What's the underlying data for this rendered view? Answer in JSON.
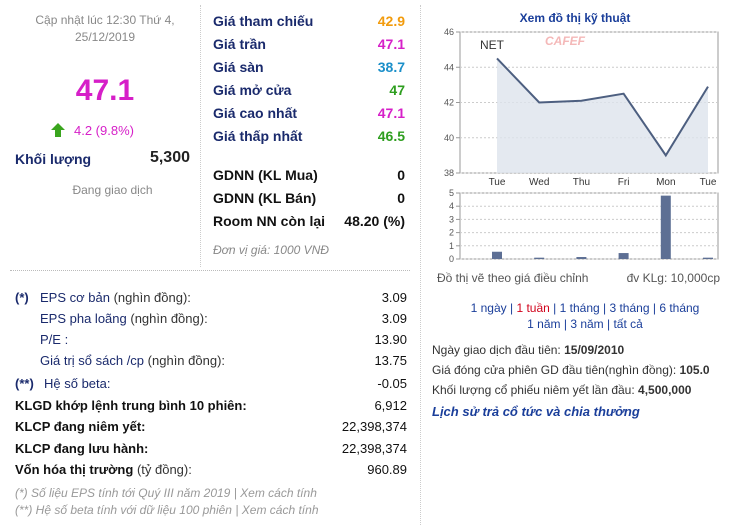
{
  "update": {
    "line1": "Cập nhật lúc 12:30 Thứ 4,",
    "line2": "25/12/2019"
  },
  "price": "47.1",
  "change": "4.2 (9.8%)",
  "volume": {
    "label": "Khối lượng",
    "value": "5,300"
  },
  "status": "Đang giao dịch",
  "quotes": [
    {
      "label": "Giá tham chiếu",
      "value": "42.9",
      "color": "#f29b0c"
    },
    {
      "label": "Giá trần",
      "value": "47.1",
      "color": "#d61fc8"
    },
    {
      "label": "Giá sàn",
      "value": "38.7",
      "color": "#1b8fc9"
    },
    {
      "label": "Giá mở cửa",
      "value": "47",
      "color": "#2e9e1f"
    },
    {
      "label": "Giá cao nhất",
      "value": "47.1",
      "color": "#d61fc8"
    },
    {
      "label": "Giá thấp nhất",
      "value": "46.5",
      "color": "#2e9e1f"
    }
  ],
  "foreign": [
    {
      "label": "GDNN (KL Mua)",
      "value": "0"
    },
    {
      "label": "GDNN (KL Bán)",
      "value": "0"
    },
    {
      "label": "Room NN còn lại",
      "value": "48.20 (%)"
    }
  ],
  "unit_note": "Đơn vị giá: 1000 VNĐ",
  "fundamentals": [
    {
      "marker": "(*)",
      "label": "EPS cơ bản",
      "unit": "(nghìn đồng):",
      "value": "3.09"
    },
    {
      "label": "EPS pha loãng",
      "unit": "(nghìn đồng):",
      "value": "3.09"
    },
    {
      "label": "P/E :",
      "value": "13.90"
    },
    {
      "label": "Giá trị sổ sách /cp",
      "unit": "(nghìn đồng):",
      "value": "13.75"
    },
    {
      "marker": "(**)",
      "label": "Hệ số beta:",
      "value": "-0.05"
    },
    {
      "label": "KLGD khớp lệnh trung bình 10 phiên:",
      "value": "6,912"
    },
    {
      "label": "KLCP đang niêm yết:",
      "value": "22,398,374"
    },
    {
      "label": "KLCP đang lưu hành:",
      "value": "22,398,374"
    },
    {
      "label": "Vốn hóa thị trường",
      "unit": "(tỷ đồng):",
      "value": "960.89"
    }
  ],
  "footnotes": [
    {
      "text": "(*) Số liệu EPS tính tới Quý III năm 2019 |",
      "link": "Xem cách tính"
    },
    {
      "text": "(**) Hệ số beta tính với dữ liệu 100 phiên |",
      "link": "Xem cách tính"
    }
  ],
  "chart_data": [
    {
      "type": "line",
      "title": "Xem đồ thị kỹ thuật",
      "watermark": "CAFEF",
      "categories": [
        "Tue",
        "Wed",
        "Thu",
        "Fri",
        "Mon",
        "Tue"
      ],
      "series": [
        {
          "name": "NET",
          "color": "#4d5f80",
          "values": [
            44.5,
            42.0,
            42.1,
            42.5,
            39.0,
            42.9
          ]
        }
      ],
      "ylim": [
        38,
        46
      ],
      "yticks": [
        38,
        40,
        42,
        44,
        46
      ],
      "grid": true
    },
    {
      "type": "bar",
      "values": [
        0.55,
        0.1,
        0.15,
        0.45,
        4.8,
        0.1
      ],
      "color": "#5d6f94",
      "ylim": [
        0,
        5
      ],
      "yticks": [
        0,
        1,
        2,
        3,
        4,
        5
      ],
      "grid": true,
      "note": "Đồ thị vẽ theo giá điều chỉnh",
      "unit": "đv KLg: 10,000cp"
    }
  ],
  "periods": {
    "items": [
      "1 ngày",
      "1 tuần",
      "1 tháng",
      "3 tháng",
      "6 tháng",
      "1 năm",
      "3 năm",
      "tất cả"
    ],
    "active": 1
  },
  "info": [
    {
      "label": "Ngày giao dịch đầu tiên:",
      "value": "15/09/2010"
    },
    {
      "label": "Giá đóng cửa phiên GD đầu tiên(nghìn đồng):",
      "value": "105.0"
    },
    {
      "label": "Khối lượng cổ phiếu niêm yết lần đầu:",
      "value": "4,500,000"
    }
  ],
  "history_link": "Lịch sử trả cổ tức và chia thưởng"
}
